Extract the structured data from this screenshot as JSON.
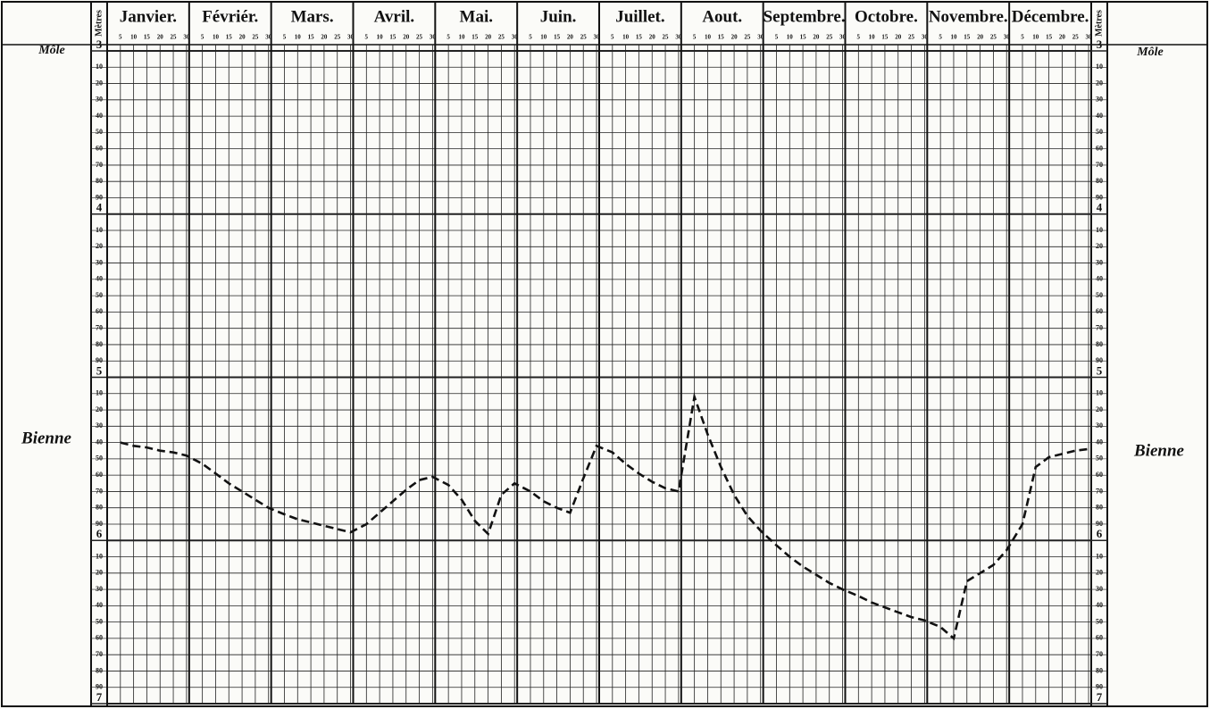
{
  "chart_data": {
    "type": "line",
    "categories": [
      "Janvier.",
      "Févriér.",
      "Mars.",
      "Avril.",
      "Mai.",
      "Juin.",
      "Juillet.",
      "Aout.",
      "Septembre.",
      "Octobre.",
      "Novembre.",
      "Décembre."
    ],
    "day_ticks": [
      5,
      10,
      15,
      20,
      25,
      30
    ],
    "y_axis_label": "Mètres",
    "reference_label": "Môle",
    "ylim": [
      3,
      7
    ],
    "y_inverted": true,
    "yticks": [
      3,
      {
        "value": 3.1,
        "label": "10"
      },
      {
        "value": 3.2,
        "label": "20"
      },
      {
        "value": 3.3,
        "label": "30"
      },
      {
        "value": 3.4,
        "label": "40"
      },
      {
        "value": 3.5,
        "label": "50"
      },
      {
        "value": 3.6,
        "label": "60"
      },
      {
        "value": 3.7,
        "label": "70"
      },
      {
        "value": 3.8,
        "label": "80"
      },
      {
        "value": 3.9,
        "label": "90"
      },
      4,
      {
        "value": 4.1,
        "label": "10"
      },
      {
        "value": 4.2,
        "label": "20"
      },
      {
        "value": 4.3,
        "label": "30"
      },
      {
        "value": 4.4,
        "label": "40"
      },
      {
        "value": 4.5,
        "label": "50"
      },
      {
        "value": 4.6,
        "label": "60"
      },
      {
        "value": 4.7,
        "label": "70"
      },
      {
        "value": 4.8,
        "label": "80"
      },
      {
        "value": 4.9,
        "label": "90"
      },
      5,
      {
        "value": 5.1,
        "label": "10"
      },
      {
        "value": 5.2,
        "label": "20"
      },
      {
        "value": 5.3,
        "label": "30"
      },
      {
        "value": 5.4,
        "label": "40"
      },
      {
        "value": 5.5,
        "label": "50"
      },
      {
        "value": 5.6,
        "label": "60"
      },
      {
        "value": 5.7,
        "label": "70"
      },
      {
        "value": 5.8,
        "label": "80"
      },
      {
        "value": 5.9,
        "label": "90"
      },
      6,
      {
        "value": 6.1,
        "label": "10"
      },
      {
        "value": 6.2,
        "label": "20"
      },
      {
        "value": 6.3,
        "label": "30"
      },
      {
        "value": 6.4,
        "label": "40"
      },
      {
        "value": 6.5,
        "label": "50"
      },
      {
        "value": 6.6,
        "label": "60"
      },
      {
        "value": 6.7,
        "label": "70"
      },
      {
        "value": 6.8,
        "label": "80"
      },
      {
        "value": 6.9,
        "label": "90"
      },
      7
    ],
    "grid": true,
    "series": [
      {
        "name": "Bienne",
        "color": "#111111",
        "dashed": true,
        "values": [
          [
            5.4,
            5.42,
            5.43,
            5.45,
            5.46,
            5.48
          ],
          [
            5.53,
            5.59,
            5.65,
            5.7,
            5.75,
            5.8
          ],
          [
            5.84,
            5.87,
            5.89,
            5.91,
            5.93,
            5.95
          ],
          [
            5.9,
            5.83,
            5.76,
            5.69,
            5.63,
            5.61
          ],
          [
            5.66,
            5.75,
            5.88,
            5.96,
            5.72,
            5.65
          ],
          [
            5.7,
            5.76,
            5.8,
            5.83,
            5.62,
            5.42
          ],
          [
            5.46,
            5.53,
            5.59,
            5.64,
            5.68,
            5.7
          ],
          [
            5.12,
            5.35,
            5.55,
            5.72,
            5.85,
            5.94
          ],
          [
            6.03,
            6.1,
            6.16,
            6.21,
            6.26,
            6.3
          ],
          [
            6.34,
            6.38,
            6.41,
            6.44,
            6.47,
            6.49
          ],
          [
            6.53,
            6.6,
            6.25,
            6.2,
            6.15,
            6.06
          ],
          [
            5.9,
            5.55,
            5.49,
            5.47,
            5.45,
            5.44
          ]
        ]
      }
    ]
  }
}
